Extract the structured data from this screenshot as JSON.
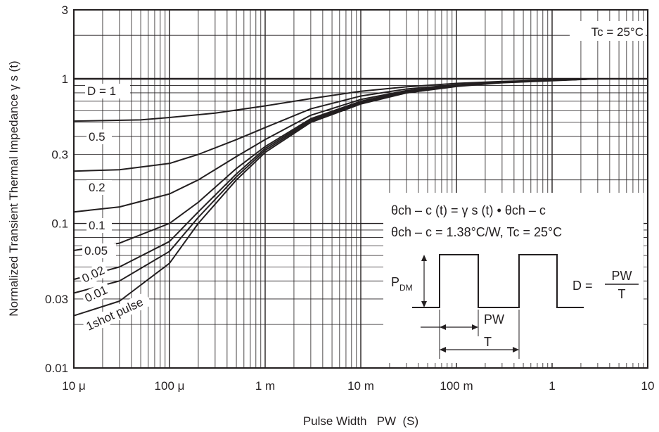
{
  "chart_data": {
    "type": "line",
    "xlabel": "Pulse Width   PW  (S)",
    "ylabel": "Normalized Transient Thermal Impedance   γ s (t)",
    "x_scale": "log",
    "y_scale": "log",
    "xlim": [
      1e-05,
      10
    ],
    "ylim": [
      0.01,
      3
    ],
    "grid": true,
    "x_ticks": [
      {
        "value": 1e-05,
        "label": "10 μ"
      },
      {
        "value": 0.0001,
        "label": "100 μ"
      },
      {
        "value": 0.001,
        "label": "1 m"
      },
      {
        "value": 0.01,
        "label": "10 m"
      },
      {
        "value": 0.1,
        "label": "100 m"
      },
      {
        "value": 1,
        "label": "1"
      },
      {
        "value": 10,
        "label": "10"
      }
    ],
    "y_ticks": [
      {
        "value": 0.01,
        "label": "0.01"
      },
      {
        "value": 0.03,
        "label": "0.03"
      },
      {
        "value": 0.1,
        "label": "0.1"
      },
      {
        "value": 0.3,
        "label": "0.3"
      },
      {
        "value": 1,
        "label": "1"
      },
      {
        "value": 3,
        "label": "3"
      }
    ],
    "condition_label": "Tc = 25°C",
    "formula_line1": "θch – c (t) = γ s (t) •  θch – c",
    "formula_line2": "θch – c = 1.38°C/W, Tc = 25°C",
    "diagram": {
      "pdm_label": "P",
      "pdm_subscript": "DM",
      "pw_label": "PW",
      "t_label": "T",
      "d_label": "D =",
      "d_numerator": "PW",
      "d_denominator": "T"
    },
    "series": [
      {
        "name": "D = 1",
        "x": [
          1e-05,
          10
        ],
        "y": [
          1,
          1
        ]
      },
      {
        "name": "0.5",
        "x": [
          1e-05,
          5e-05,
          0.0001,
          0.0003,
          0.001,
          0.003,
          0.01,
          0.03,
          0.1,
          0.3,
          1,
          3
        ],
        "y": [
          0.51,
          0.52,
          0.54,
          0.58,
          0.65,
          0.73,
          0.82,
          0.88,
          0.93,
          0.96,
          0.98,
          1.0
        ]
      },
      {
        "name": "0.2",
        "x": [
          1e-05,
          3e-05,
          0.0001,
          0.0002,
          0.0005,
          0.001,
          0.003,
          0.01,
          0.03,
          0.1,
          0.3,
          1,
          3
        ],
        "y": [
          0.23,
          0.235,
          0.26,
          0.3,
          0.38,
          0.46,
          0.62,
          0.76,
          0.85,
          0.91,
          0.95,
          0.975,
          1.0
        ]
      },
      {
        "name": "0.1",
        "x": [
          1e-05,
          3e-05,
          0.0001,
          0.0002,
          0.0005,
          0.001,
          0.003,
          0.01,
          0.03,
          0.1,
          0.3,
          1,
          3
        ],
        "y": [
          0.12,
          0.13,
          0.16,
          0.2,
          0.29,
          0.38,
          0.56,
          0.72,
          0.83,
          0.9,
          0.95,
          0.975,
          1.0
        ]
      },
      {
        "name": "0.05",
        "x": [
          1e-05,
          3e-05,
          0.0001,
          0.0002,
          0.0005,
          0.001,
          0.003,
          0.01,
          0.03,
          0.1,
          0.3,
          1,
          3
        ],
        "y": [
          0.065,
          0.073,
          0.1,
          0.14,
          0.24,
          0.34,
          0.53,
          0.7,
          0.82,
          0.9,
          0.95,
          0.975,
          1.0
        ]
      },
      {
        "name": "0.02",
        "x": [
          1e-05,
          3e-05,
          0.0001,
          0.0002,
          0.0005,
          0.001,
          0.003,
          0.01,
          0.03,
          0.1,
          0.3,
          1,
          3
        ],
        "y": [
          0.041,
          0.05,
          0.075,
          0.12,
          0.22,
          0.33,
          0.52,
          0.69,
          0.81,
          0.89,
          0.945,
          0.975,
          1.0
        ]
      },
      {
        "name": "0.01",
        "x": [
          1e-05,
          3e-05,
          0.0001,
          0.0002,
          0.0005,
          0.001,
          0.003,
          0.01,
          0.03,
          0.1,
          0.3,
          1,
          3
        ],
        "y": [
          0.033,
          0.04,
          0.064,
          0.11,
          0.21,
          0.32,
          0.51,
          0.68,
          0.8,
          0.89,
          0.945,
          0.975,
          1.0
        ]
      },
      {
        "name": "1shot pulse",
        "x": [
          1e-05,
          3e-05,
          0.0001,
          0.0002,
          0.0005,
          0.001,
          0.003,
          0.01,
          0.03,
          0.1,
          0.3,
          1,
          3
        ],
        "y": [
          0.023,
          0.029,
          0.053,
          0.1,
          0.2,
          0.31,
          0.5,
          0.67,
          0.8,
          0.885,
          0.94,
          0.97,
          1.0
        ]
      }
    ]
  }
}
